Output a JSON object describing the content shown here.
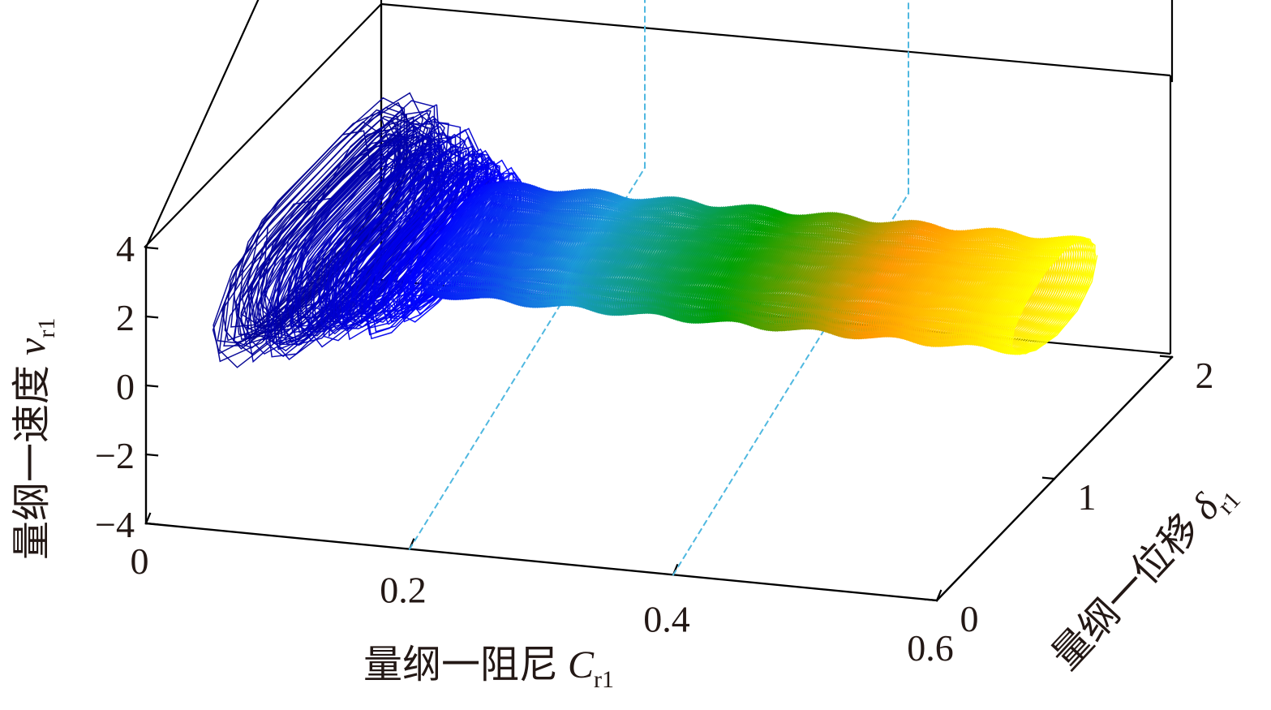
{
  "chart_data": {
    "type": "3d-phase-trajectory",
    "x_axis": {
      "label": "量纲一阻尼 ",
      "symbol": "C",
      "subscript": "r1",
      "range": [
        0,
        0.6
      ],
      "ticks": [
        {
          "v": 0,
          "label": "0"
        },
        {
          "v": 0.2,
          "label": "0.2"
        },
        {
          "v": 0.4,
          "label": "0.4"
        },
        {
          "v": 0.6,
          "label": "0.6"
        }
      ]
    },
    "y_axis": {
      "label": "量纲一位移 ",
      "symbol": "δ",
      "subscript": "r1",
      "range": [
        0,
        2
      ],
      "ticks": [
        {
          "v": 0,
          "label": "0"
        },
        {
          "v": 1,
          "label": "1"
        },
        {
          "v": 2,
          "label": "2"
        }
      ]
    },
    "z_axis": {
      "label": "量纲一速度 ",
      "symbol": "v",
      "subscript": "r1",
      "range": [
        -4,
        4
      ],
      "ticks": [
        {
          "v": -4,
          "label": "−4"
        },
        {
          "v": -2,
          "label": "−2"
        },
        {
          "v": 0,
          "label": "0"
        },
        {
          "v": 2,
          "label": "2"
        },
        {
          "v": 4,
          "label": "4"
        }
      ]
    },
    "reference_lines_x": [
      0.2,
      0.4
    ],
    "reference_line_color": "#4fb8e0",
    "colormap": [
      "#00008b",
      "#0000ff",
      "#1a9ad6",
      "#00a000",
      "#ff9900",
      "#ffff00"
    ],
    "trajectory": {
      "c_start": 0.03,
      "c_end": 0.6,
      "regimes": [
        {
          "c_max": 0.15,
          "description": "chaotic",
          "delta_center": 1.05,
          "delta_amp_range": [
            0.25,
            0.95
          ],
          "v_center_range": [
            0.6,
            1.2
          ],
          "v_amp_range": [
            0.6,
            3.3
          ]
        },
        {
          "c_max": 0.6,
          "description": "periodic",
          "delta_center": 1.0,
          "delta_amp": 0.35,
          "v_center": 1.2,
          "v_amp": 1.25
        }
      ]
    }
  }
}
